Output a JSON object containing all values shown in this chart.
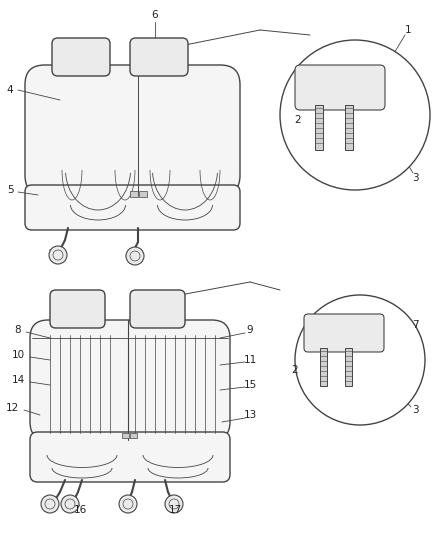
{
  "bg_color": "#ffffff",
  "line_color": "#444444",
  "fill_light": "#f5f5f5",
  "fill_lighter": "#ebebeb",
  "text_color": "#222222",
  "figure_size": [
    4.38,
    5.33
  ],
  "dpi": 100
}
